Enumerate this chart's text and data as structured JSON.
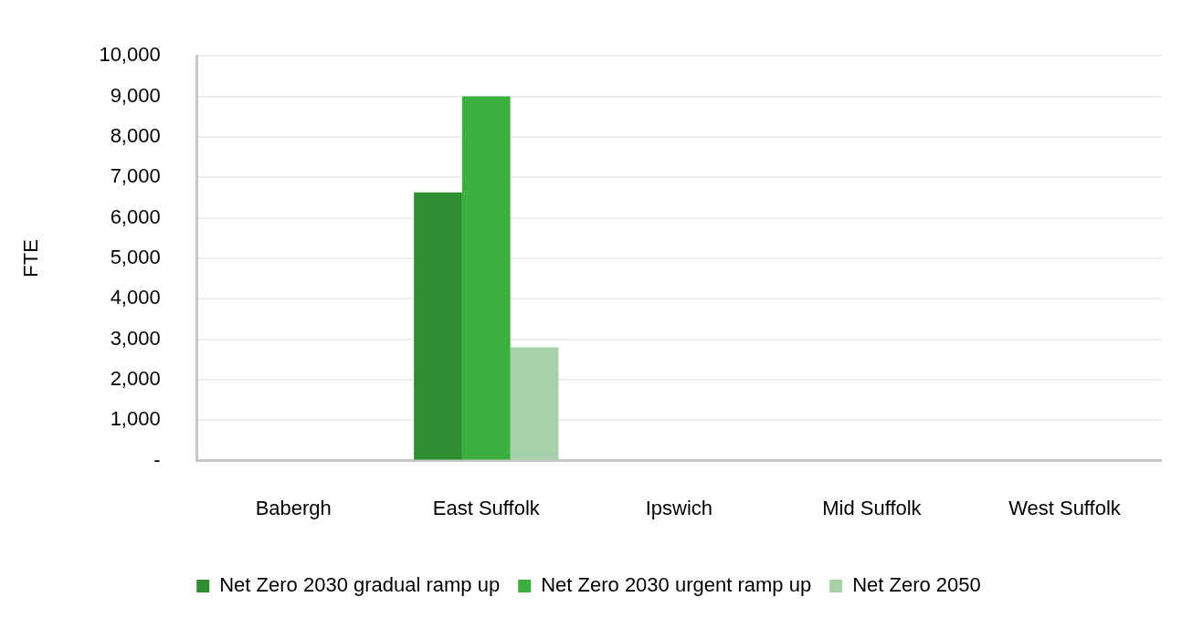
{
  "chart_data": {
    "type": "bar",
    "ylabel": "FTE",
    "categories": [
      "Babergh",
      "East Suffolk",
      "Ipswich",
      "Mid Suffolk",
      "West Suffolk"
    ],
    "series": [
      {
        "name": "Net Zero 2030 gradual ramp up",
        "color": "#2e8f32",
        "values": [
          0,
          6630,
          0,
          0,
          0
        ]
      },
      {
        "name": "Net Zero 2030 urgent ramp up",
        "color": "#3bb03e",
        "values": [
          0,
          9000,
          0,
          0,
          0
        ]
      },
      {
        "name": "Net Zero 2050",
        "color": "#a6d1a8",
        "values": [
          0,
          2800,
          0,
          0,
          0
        ]
      }
    ],
    "ylim": [
      0,
      10000
    ],
    "yticks": [
      {
        "value": 0,
        "label": "-"
      },
      {
        "value": 1000,
        "label": "1,000"
      },
      {
        "value": 2000,
        "label": "2,000"
      },
      {
        "value": 3000,
        "label": "3,000"
      },
      {
        "value": 4000,
        "label": "4,000"
      },
      {
        "value": 5000,
        "label": "5,000"
      },
      {
        "value": 6000,
        "label": "6,000"
      },
      {
        "value": 7000,
        "label": "7,000"
      },
      {
        "value": 8000,
        "label": "8,000"
      },
      {
        "value": 9000,
        "label": "9,000"
      },
      {
        "value": 10000,
        "label": "10,000"
      }
    ],
    "grid": "y",
    "legend": "bottom"
  }
}
